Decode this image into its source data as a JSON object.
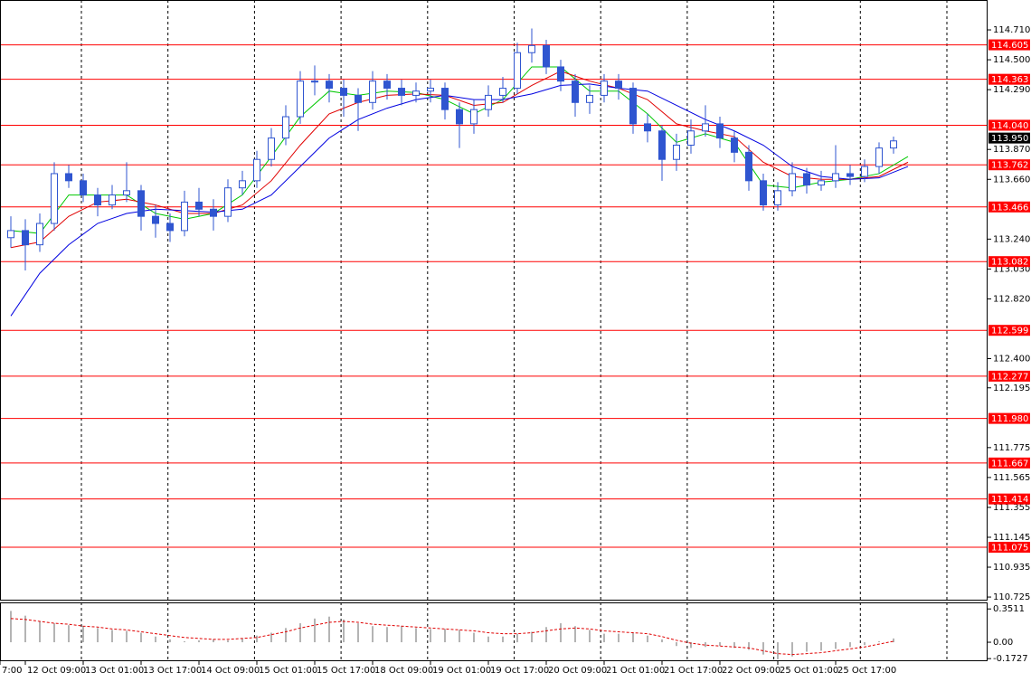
{
  "chart_data": {
    "type": "candlestick",
    "color": "#2f55d0",
    "xlim": [
      9,
      282
    ],
    "ylim": [
      110.7,
      114.92
    ],
    "x": [
      12,
      16,
      20,
      24,
      28,
      32,
      36,
      40,
      44,
      48,
      52,
      56,
      60,
      64,
      68,
      72,
      76,
      80,
      84,
      88,
      92,
      96,
      100,
      104,
      108,
      112,
      116,
      120,
      124,
      128,
      132,
      136,
      140,
      144,
      148,
      152,
      156,
      160,
      164,
      168,
      172,
      176,
      180,
      184,
      188,
      192,
      196,
      200,
      204,
      208,
      212,
      216,
      220,
      224,
      228,
      232,
      236,
      240,
      244,
      248,
      252,
      256
    ],
    "open": [
      113.25,
      113.3,
      113.2,
      113.35,
      113.7,
      113.65,
      113.55,
      113.48,
      113.55,
      113.58,
      113.4,
      113.35,
      113.3,
      113.5,
      113.45,
      113.4,
      113.6,
      113.65,
      113.8,
      113.95,
      114.1,
      114.35,
      114.35,
      114.3,
      114.25,
      114.2,
      114.35,
      114.3,
      114.25,
      114.28,
      114.3,
      114.15,
      114.05,
      114.15,
      114.25,
      114.3,
      114.55,
      114.6,
      114.45,
      114.35,
      114.2,
      114.25,
      114.35,
      114.3,
      114.05,
      114.0,
      113.8,
      113.9,
      114.0,
      114.05,
      113.95,
      113.85,
      113.65,
      113.48,
      113.58,
      113.7,
      113.62,
      113.65,
      113.7,
      113.68,
      113.75,
      113.88
    ],
    "high": [
      113.4,
      113.38,
      113.42,
      113.78,
      113.76,
      113.7,
      113.6,
      113.62,
      113.78,
      113.62,
      113.48,
      113.42,
      113.58,
      113.6,
      113.52,
      113.66,
      113.72,
      113.86,
      114.02,
      114.18,
      114.42,
      114.46,
      114.4,
      114.36,
      114.3,
      114.42,
      114.4,
      114.36,
      114.34,
      114.36,
      114.34,
      114.2,
      114.22,
      114.32,
      114.38,
      114.62,
      114.72,
      114.64,
      114.5,
      114.4,
      114.32,
      114.4,
      114.4,
      114.34,
      114.12,
      114.04,
      113.98,
      114.08,
      114.18,
      114.1,
      114.0,
      113.9,
      113.7,
      113.64,
      113.78,
      113.74,
      113.72,
      113.9,
      113.76,
      113.8,
      113.92,
      113.96
    ],
    "low": [
      113.18,
      113.02,
      113.15,
      113.3,
      113.6,
      113.5,
      113.4,
      113.45,
      113.5,
      113.3,
      113.25,
      113.22,
      113.26,
      113.4,
      113.3,
      113.36,
      113.55,
      113.6,
      113.75,
      113.9,
      114.05,
      114.25,
      114.2,
      114.1,
      114.0,
      114.15,
      114.22,
      114.18,
      114.2,
      114.2,
      114.08,
      113.88,
      113.98,
      114.1,
      114.2,
      114.26,
      114.48,
      114.4,
      114.28,
      114.1,
      114.12,
      114.2,
      114.22,
      113.98,
      113.92,
      113.65,
      113.72,
      113.84,
      113.96,
      113.88,
      113.78,
      113.58,
      113.44,
      113.44,
      113.54,
      113.56,
      113.58,
      113.6,
      113.62,
      113.64,
      113.7,
      113.84
    ],
    "close": [
      113.3,
      113.2,
      113.35,
      113.7,
      113.65,
      113.55,
      113.48,
      113.55,
      113.58,
      113.4,
      113.35,
      113.3,
      113.5,
      113.45,
      113.4,
      113.6,
      113.65,
      113.8,
      113.95,
      114.1,
      114.35,
      114.35,
      114.3,
      114.25,
      114.2,
      114.35,
      114.3,
      114.25,
      114.28,
      114.3,
      114.15,
      114.05,
      114.15,
      114.25,
      114.3,
      114.55,
      114.6,
      114.45,
      114.35,
      114.2,
      114.25,
      114.35,
      114.3,
      114.05,
      114.0,
      113.8,
      113.9,
      114.0,
      114.05,
      113.95,
      113.85,
      113.65,
      113.48,
      113.58,
      113.7,
      113.62,
      113.65,
      113.7,
      113.68,
      113.75,
      113.88,
      113.93
    ],
    "moving_averages": [
      {
        "color": "#00c800",
        "x": [
          12,
          20,
          28,
          36,
          44,
          52,
          60,
          68,
          76,
          84,
          92,
          100,
          108,
          116,
          124,
          132,
          140,
          148,
          156,
          164,
          172,
          180,
          188,
          196,
          204,
          212,
          220,
          228,
          236,
          244,
          252,
          260
        ],
        "values": [
          113.3,
          113.28,
          113.55,
          113.55,
          113.55,
          113.42,
          113.38,
          113.42,
          113.55,
          113.82,
          114.1,
          114.28,
          114.25,
          114.28,
          114.27,
          114.22,
          114.12,
          114.22,
          114.45,
          114.45,
          114.28,
          114.28,
          114.12,
          113.92,
          113.98,
          113.92,
          113.62,
          113.6,
          113.64,
          113.66,
          113.7,
          113.82
        ]
      },
      {
        "color": "#e00000",
        "x": [
          12,
          20,
          28,
          36,
          44,
          52,
          60,
          68,
          76,
          84,
          92,
          100,
          108,
          116,
          124,
          132,
          140,
          148,
          156,
          164,
          172,
          180,
          188,
          196,
          204,
          212,
          220,
          228,
          236,
          244,
          252,
          260
        ],
        "values": [
          113.18,
          113.22,
          113.4,
          113.5,
          113.52,
          113.48,
          113.42,
          113.42,
          113.48,
          113.65,
          113.9,
          114.12,
          114.2,
          114.25,
          114.26,
          114.25,
          114.18,
          114.2,
          114.32,
          114.42,
          114.35,
          114.3,
          114.22,
          114.05,
          114.0,
          113.96,
          113.78,
          113.68,
          113.66,
          113.66,
          113.68,
          113.78
        ]
      },
      {
        "color": "#0000e0",
        "x": [
          12,
          20,
          28,
          36,
          44,
          52,
          60,
          68,
          76,
          84,
          92,
          100,
          108,
          116,
          124,
          132,
          140,
          148,
          156,
          164,
          172,
          180,
          188,
          196,
          204,
          212,
          220,
          228,
          236,
          244,
          252,
          260
        ],
        "values": [
          112.7,
          113.0,
          113.2,
          113.35,
          113.42,
          113.45,
          113.44,
          113.43,
          113.45,
          113.55,
          113.75,
          113.95,
          114.08,
          114.16,
          114.22,
          114.25,
          114.22,
          114.22,
          114.26,
          114.32,
          114.33,
          114.3,
          114.28,
          114.18,
          114.08,
          114.0,
          113.9,
          113.75,
          113.68,
          113.66,
          113.67,
          113.75
        ]
      }
    ],
    "levels": {
      "color": "#ff0000",
      "values": [
        114.605,
        114.363,
        {
          "value": 114.04,
          "label": "114.040"
        },
        113.762,
        113.466,
        113.082,
        112.599,
        112.277,
        {
          "value": 111.98,
          "label": "111.980"
        },
        111.667,
        111.414,
        111.075
      ]
    },
    "current_price": {
      "value": 113.95,
      "label": "113.950"
    },
    "yticks": [
      {
        "value": 114.71,
        "label": "114.710"
      },
      {
        "value": 114.5,
        "label": "114.500"
      },
      {
        "value": 114.29,
        "label": "114.290"
      },
      {
        "value": 113.87,
        "label": "113.870"
      },
      {
        "value": 113.66,
        "label": "113.660"
      },
      {
        "value": 113.24,
        "label": "113.240"
      },
      {
        "value": 113.03,
        "label": "113.030"
      },
      {
        "value": 112.82,
        "label": "112.820"
      },
      {
        "value": 112.4,
        "label": "112.400"
      },
      112.195,
      111.775,
      111.565,
      111.355,
      111.145,
      110.935,
      110.725
    ],
    "xticks": [
      {
        "value": 9,
        "label": "7:00"
      },
      {
        "value": 16,
        "label": "12 Oct 09:00"
      },
      {
        "value": 32,
        "label": "13 Oct 01:00"
      },
      {
        "value": 48,
        "label": "13 Oct 17:00"
      },
      {
        "value": 64,
        "label": "14 Oct 09:00"
      },
      {
        "value": 80,
        "label": "15 Oct 01:00"
      },
      {
        "value": 96,
        "label": "15 Oct 17:00"
      },
      {
        "value": 112,
        "label": "18 Oct 09:00"
      },
      {
        "value": 128,
        "label": "19 Oct 01:00"
      },
      {
        "value": 144,
        "label": "19 Oct 17:00"
      },
      {
        "value": 160,
        "label": "20 Oct 09:00"
      },
      {
        "value": 176,
        "label": "21 Oct 01:00"
      },
      {
        "value": 192,
        "label": "21 Oct 17:00"
      },
      {
        "value": 208,
        "label": "22 Oct 09:00"
      },
      {
        "value": 224,
        "label": "25 Oct 01:00"
      },
      {
        "value": 240,
        "label": "25 Oct 17:00"
      }
    ],
    "indicator": {
      "type": "histogram",
      "color": "#b4b4b4",
      "ylim": [
        -0.2,
        0.42
      ],
      "yticks": [
        0.3511,
        {
          "value": 0,
          "label": "0.00"
        },
        -0.1727
      ],
      "values": [
        0.33,
        0.28,
        0.22,
        0.2,
        0.18,
        0.17,
        0.15,
        0.13,
        0.12,
        0.1,
        0.06,
        0.03,
        0.01,
        0.02,
        0.03,
        0.02,
        0.04,
        0.07,
        0.1,
        0.15,
        0.2,
        0.25,
        0.27,
        0.24,
        0.2,
        0.17,
        0.16,
        0.17,
        0.15,
        0.14,
        0.14,
        0.13,
        0.1,
        0.06,
        0.06,
        0.09,
        0.11,
        0.16,
        0.2,
        0.17,
        0.13,
        0.09,
        0.09,
        0.1,
        0.07,
        0.03,
        -0.04,
        -0.06,
        -0.05,
        -0.04,
        -0.06,
        -0.08,
        -0.13,
        -0.18,
        -0.15,
        -0.1,
        -0.09,
        -0.07,
        -0.05,
        -0.03,
        0.01,
        0.04
      ],
      "signal": {
        "color": "#e00000",
        "values": [
          0.25,
          0.24,
          0.22,
          0.2,
          0.19,
          0.17,
          0.16,
          0.14,
          0.13,
          0.11,
          0.09,
          0.07,
          0.05,
          0.04,
          0.03,
          0.03,
          0.04,
          0.05,
          0.08,
          0.11,
          0.15,
          0.18,
          0.21,
          0.22,
          0.21,
          0.19,
          0.18,
          0.17,
          0.16,
          0.15,
          0.14,
          0.13,
          0.12,
          0.1,
          0.09,
          0.09,
          0.1,
          0.12,
          0.14,
          0.15,
          0.14,
          0.12,
          0.11,
          0.1,
          0.09,
          0.06,
          0.02,
          -0.01,
          -0.03,
          -0.04,
          -0.05,
          -0.06,
          -0.09,
          -0.12,
          -0.13,
          -0.12,
          -0.11,
          -0.09,
          -0.07,
          -0.05,
          -0.02,
          0.01
        ]
      }
    }
  }
}
